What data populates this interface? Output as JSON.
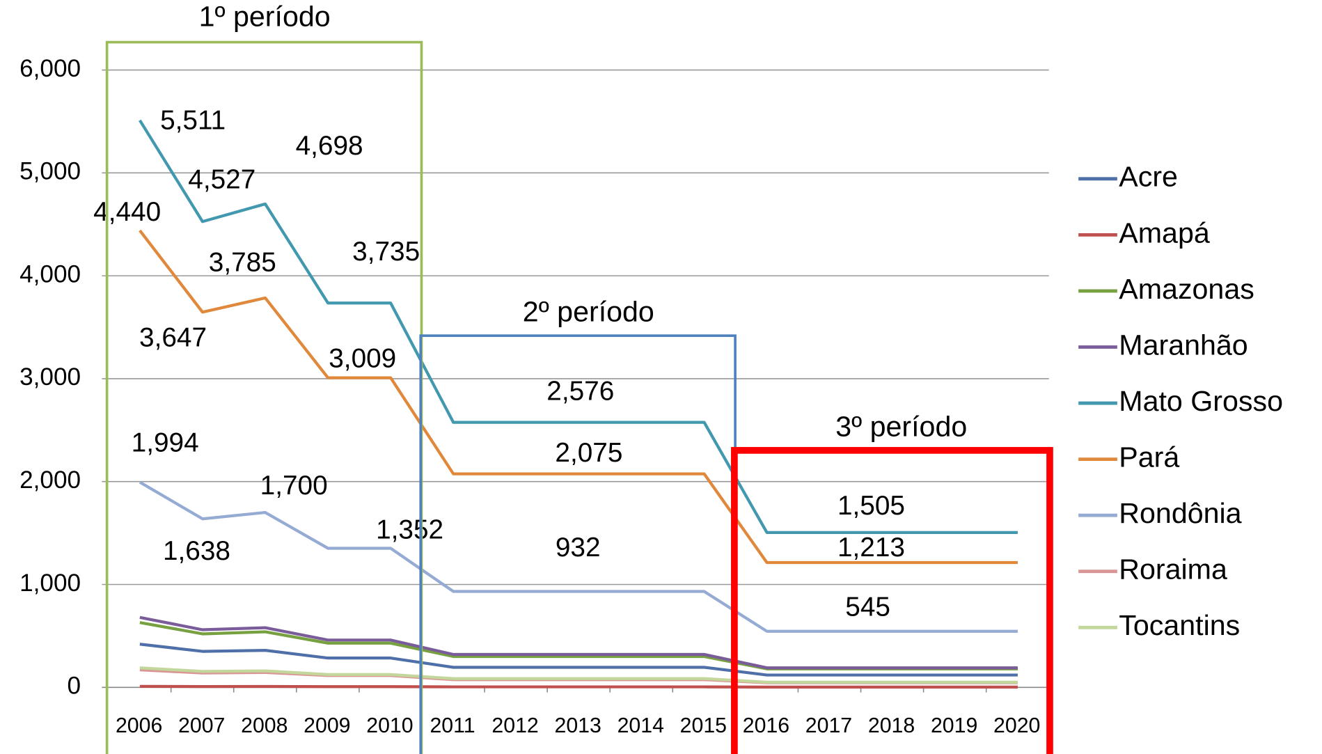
{
  "chart_data": {
    "type": "line",
    "categories": [
      "2006",
      "2007",
      "2008",
      "2009",
      "2010",
      "2011",
      "2012",
      "2013",
      "2014",
      "2015",
      "2016",
      "2017",
      "2018",
      "2019",
      "2020"
    ],
    "ylim": [
      0,
      6000
    ],
    "yticks": [
      0,
      {
        "value": 1000,
        "label": "1,000"
      },
      {
        "value": 2000,
        "label": "2,000"
      },
      {
        "value": 3000,
        "label": "3,000"
      },
      {
        "value": 4000,
        "label": "4,000"
      },
      {
        "value": 5000,
        "label": "5,000"
      },
      {
        "value": 6000,
        "label": "6,000"
      }
    ],
    "grid": true,
    "legend": "right",
    "annotations": [
      {
        "text": "1º período",
        "color": "#9bbb59"
      },
      {
        "text": "2º período",
        "color": "#4f81bd"
      },
      {
        "text": "3º período",
        "color": "#ff0000"
      }
    ],
    "series": [
      {
        "name": "Acre",
        "color": "#4f6fa8",
        "values": [
          420,
          350,
          360,
          285,
          285,
          195,
          195,
          195,
          195,
          195,
          120,
          120,
          120,
          120,
          120
        ]
      },
      {
        "name": "Amapá",
        "color": "#c0504d",
        "values": [
          10,
          8,
          9,
          7,
          7,
          5,
          5,
          5,
          5,
          5,
          3,
          3,
          3,
          3,
          3
        ]
      },
      {
        "name": "Amazonas",
        "color": "#77a040",
        "values": [
          630,
          520,
          540,
          430,
          430,
          300,
          300,
          300,
          300,
          300,
          180,
          180,
          180,
          180,
          180
        ]
      },
      {
        "name": "Maranhão",
        "color": "#7a5c9b",
        "values": [
          680,
          560,
          580,
          460,
          460,
          320,
          320,
          320,
          320,
          320,
          190,
          190,
          190,
          190,
          190
        ]
      },
      {
        "name": "Mato Grosso",
        "color": "#4198af",
        "values": [
          5511,
          4527,
          4698,
          3735,
          3735,
          2576,
          2576,
          2576,
          2576,
          2576,
          1505,
          1505,
          1505,
          1505,
          1505
        ],
        "value_labels": [
          "5,511",
          "4,527",
          "4,698",
          "3,735",
          null,
          null,
          null,
          "2,576",
          null,
          null,
          null,
          null,
          "1,505",
          null,
          null
        ]
      },
      {
        "name": "Pará",
        "color": "#e0883b",
        "values": [
          4440,
          3647,
          3785,
          3009,
          3009,
          2075,
          2075,
          2075,
          2075,
          2075,
          1213,
          1213,
          1213,
          1213,
          1213
        ],
        "value_labels": [
          "4,440",
          "3,647",
          "3,785",
          "3,009",
          null,
          null,
          null,
          "2,075",
          null,
          null,
          null,
          null,
          "1,213",
          null,
          null
        ]
      },
      {
        "name": "Rondônia",
        "color": "#95abd4",
        "values": [
          1994,
          1638,
          1700,
          1352,
          1352,
          932,
          932,
          932,
          932,
          932,
          545,
          545,
          545,
          545,
          545
        ],
        "value_labels": [
          "1,994",
          "1,638",
          "1,700",
          "1,352",
          null,
          null,
          null,
          "932",
          null,
          null,
          null,
          null,
          "545",
          null,
          null
        ]
      },
      {
        "name": "Roraima",
        "color": "#d99694",
        "values": [
          170,
          140,
          145,
          115,
          115,
          75,
          75,
          75,
          75,
          75,
          45,
          45,
          45,
          45,
          45
        ]
      },
      {
        "name": "Tocantins",
        "color": "#c3d69b",
        "values": [
          190,
          155,
          160,
          125,
          125,
          85,
          85,
          85,
          85,
          85,
          50,
          50,
          50,
          50,
          50
        ]
      }
    ]
  }
}
